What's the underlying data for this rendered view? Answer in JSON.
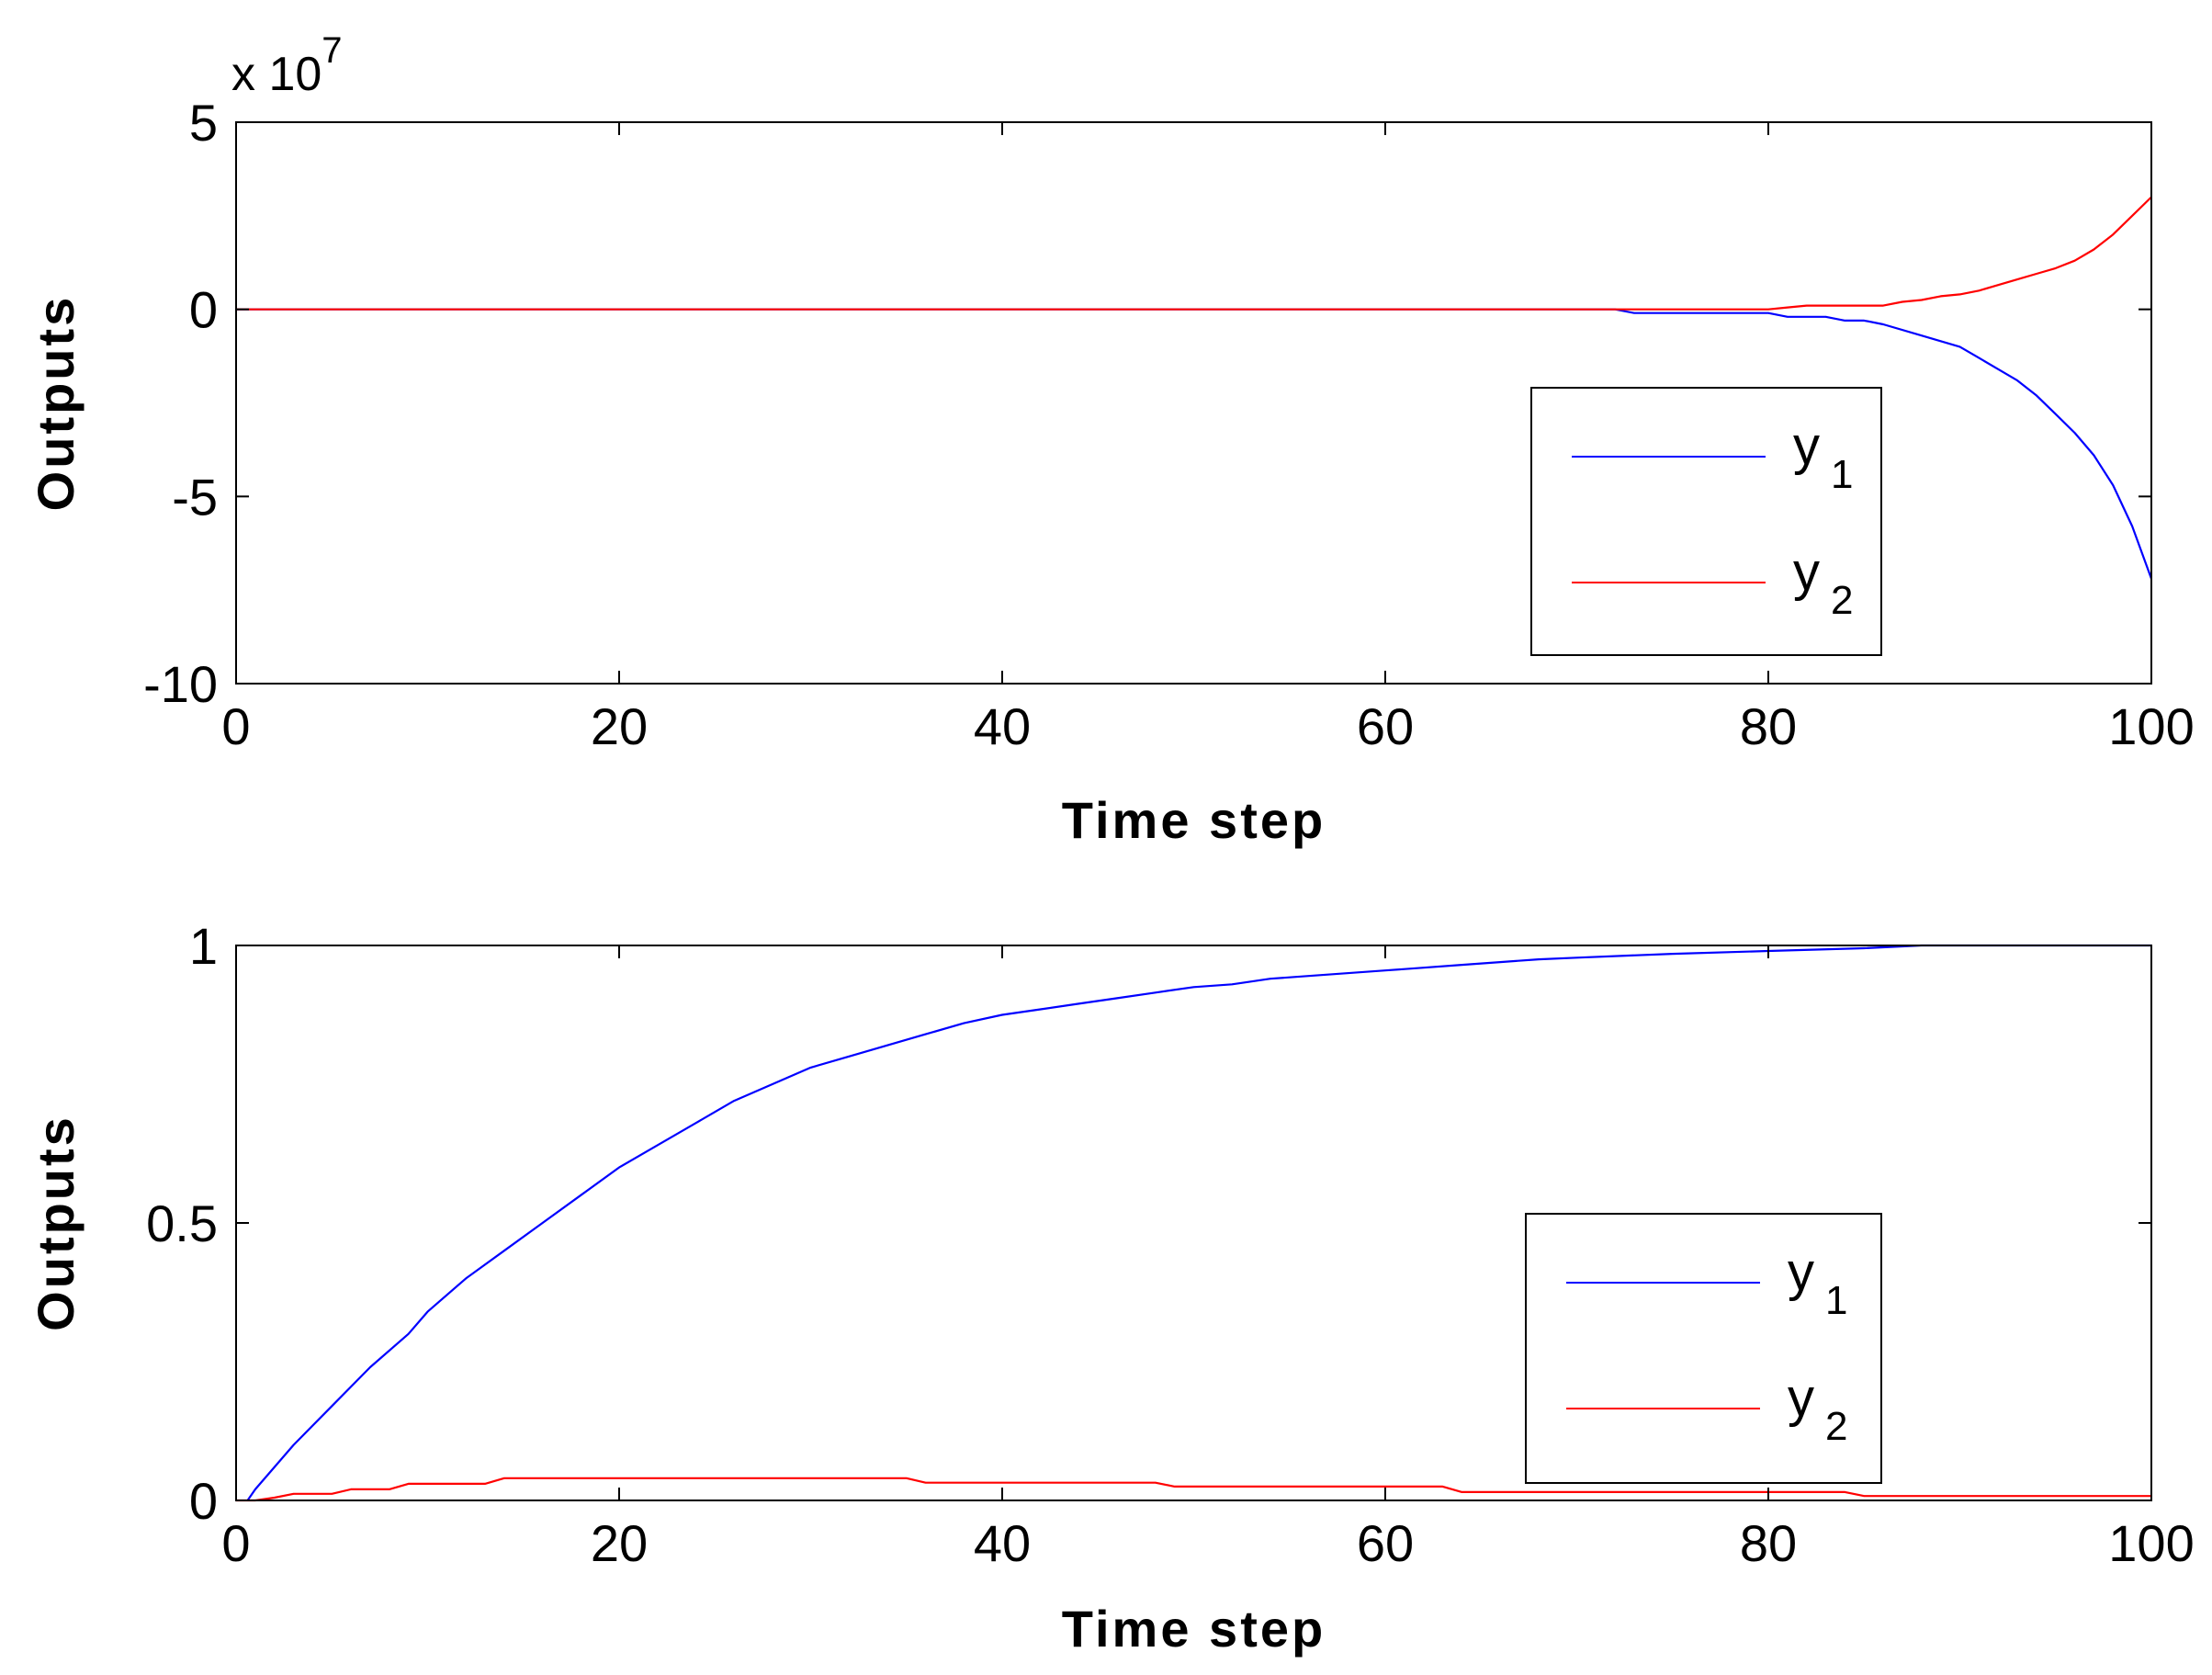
{
  "figure": {
    "background": "#ffffff"
  },
  "colors": {
    "y1": "#0000ff",
    "y2": "#ff0000",
    "axes": "#000000"
  },
  "chart_data": [
    {
      "type": "line",
      "xlabel": "Time step",
      "ylabel": "Outputs",
      "exponent_label": {
        "base": "x 10",
        "power": "7"
      },
      "xlim": [
        0,
        100
      ],
      "ylim": [
        -10,
        5
      ],
      "y_scale_factor": 10000000,
      "xticks": [
        0,
        20,
        40,
        60,
        80,
        100
      ],
      "xtick_labels": [
        "0",
        "20",
        "40",
        "60",
        "80",
        "100"
      ],
      "yticks": [
        -10,
        -5,
        0,
        5
      ],
      "ytick_labels": [
        "-10",
        "-5",
        "0",
        "5"
      ],
      "grid": false,
      "legend_position": "right-lower",
      "series": [
        {
          "name": "y",
          "subscript": "1",
          "color": "#0000ff",
          "x": [
            0,
            72,
            73,
            80,
            81,
            83,
            84,
            85,
            86,
            88,
            90,
            91,
            92,
            93,
            94,
            95,
            96,
            97,
            98,
            99,
            100
          ],
          "y": [
            0,
            0,
            -0.1,
            -0.1,
            -0.2,
            -0.2,
            -0.3,
            -0.3,
            -0.4,
            -0.7,
            -1.0,
            -1.3,
            -1.6,
            -1.9,
            -2.3,
            -2.8,
            -3.3,
            -3.9,
            -4.7,
            -5.8,
            -7.2
          ]
        },
        {
          "name": "y",
          "subscript": "2",
          "color": "#ff0000",
          "x": [
            0,
            80,
            81,
            82,
            86,
            87,
            88,
            89,
            90,
            91,
            92,
            93,
            94,
            95,
            96,
            97,
            98,
            99,
            100
          ],
          "y": [
            0,
            0,
            0.05,
            0.1,
            0.1,
            0.2,
            0.25,
            0.35,
            0.4,
            0.5,
            0.65,
            0.8,
            0.95,
            1.1,
            1.3,
            1.6,
            2.0,
            2.5,
            3.0
          ]
        }
      ]
    },
    {
      "type": "line",
      "xlabel": "Time step",
      "ylabel": "Outputs",
      "xlim": [
        0,
        100
      ],
      "ylim": [
        0,
        1
      ],
      "xticks": [
        0,
        20,
        40,
        60,
        80,
        100
      ],
      "xtick_labels": [
        "0",
        "20",
        "40",
        "60",
        "80",
        "100"
      ],
      "yticks": [
        0,
        0.5,
        1
      ],
      "ytick_labels": [
        "0",
        "0.5",
        "1"
      ],
      "grid": false,
      "legend_position": "right-lower",
      "series": [
        {
          "name": "y",
          "subscript": "1",
          "color": "#0000ff",
          "x": [
            0.6,
            1,
            3,
            5,
            7,
            9,
            10,
            12,
            14,
            16,
            18,
            20,
            22,
            24,
            26,
            28,
            30,
            32,
            34,
            36,
            38,
            40,
            42,
            44,
            46,
            48,
            50,
            52,
            54,
            56,
            58,
            60,
            62,
            64,
            66,
            68,
            70,
            75,
            80,
            85,
            88,
            90,
            100
          ],
          "y": [
            0,
            0.02,
            0.1,
            0.17,
            0.24,
            0.3,
            0.34,
            0.4,
            0.45,
            0.5,
            0.55,
            0.6,
            0.64,
            0.68,
            0.72,
            0.75,
            0.78,
            0.8,
            0.82,
            0.84,
            0.86,
            0.875,
            0.885,
            0.895,
            0.905,
            0.915,
            0.925,
            0.93,
            0.94,
            0.945,
            0.95,
            0.955,
            0.96,
            0.965,
            0.97,
            0.975,
            0.978,
            0.985,
            0.99,
            0.995,
            1.0,
            1.0,
            1.0
          ]
        },
        {
          "name": "y",
          "subscript": "2",
          "color": "#ff0000",
          "x": [
            0,
            1,
            2,
            3,
            5,
            6,
            8,
            9,
            13,
            14,
            35,
            36,
            48,
            49,
            63,
            64,
            84,
            85,
            100
          ],
          "y": [
            0,
            0,
            0.005,
            0.012,
            0.012,
            0.02,
            0.02,
            0.03,
            0.03,
            0.04,
            0.04,
            0.032,
            0.032,
            0.025,
            0.025,
            0.015,
            0.015,
            0.008,
            0.008
          ]
        }
      ]
    }
  ]
}
